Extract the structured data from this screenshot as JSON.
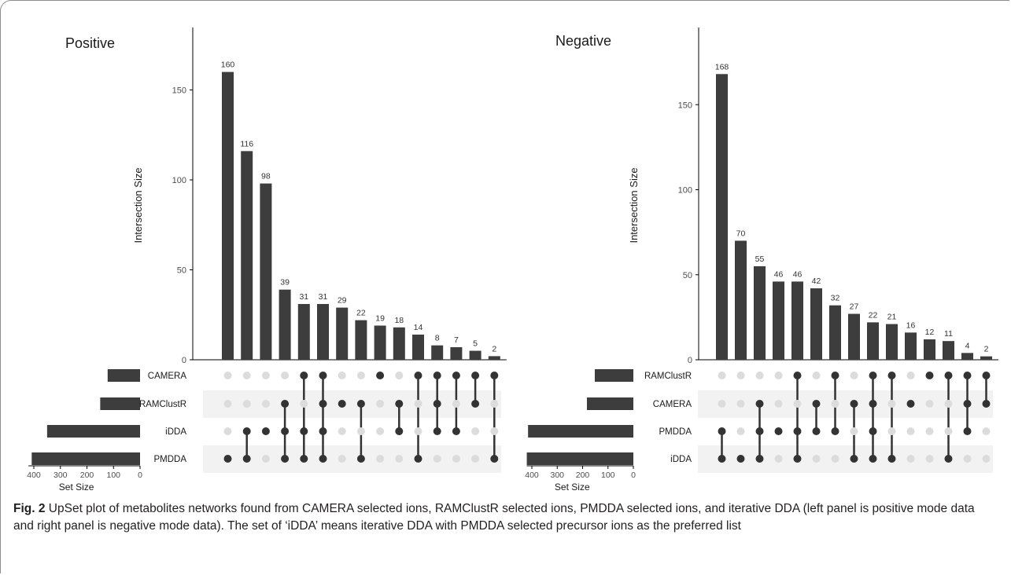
{
  "panels": {
    "left_title": "Positive",
    "right_title": "Negative"
  },
  "caption": {
    "label": "Fig. 2",
    "text": "UpSet plot of metabolites networks found from CAMERA selected ions, RAMClustR selected ions, PMDDA selected ions, and iterative DDA (left panel is positive mode data and right panel is negative mode data). The set of ‘iDDA’ means iterative DDA with PMDDA selected precursor ions as the preferred list"
  },
  "colors": {
    "bar": "#3d3d3d",
    "dot_active": "#333333",
    "dot_inactive": "#dcdcdc",
    "stripe": "#f2f2f2",
    "axis": "#000000"
  },
  "chart_data": [
    {
      "type": "bar",
      "title": "Positive",
      "ylabel": "Intersection Size",
      "xlabel_sets": "Set Size",
      "ylim": [
        0,
        175
      ],
      "yticks": [
        0,
        50,
        100,
        150
      ],
      "set_size_ticks": [
        400,
        300,
        200,
        100,
        0
      ],
      "sets": [
        {
          "name": "CAMERA",
          "size": 122
        },
        {
          "name": "RAMClustR",
          "size": 150
        },
        {
          "name": "iDDA",
          "size": 350
        },
        {
          "name": "PMDDA",
          "size": 408
        }
      ],
      "intersections": [
        {
          "value": 160,
          "members": [
            "PMDDA"
          ]
        },
        {
          "value": 116,
          "members": [
            "iDDA",
            "PMDDA"
          ]
        },
        {
          "value": 98,
          "members": [
            "iDDA"
          ]
        },
        {
          "value": 39,
          "members": [
            "RAMClustR",
            "iDDA",
            "PMDDA"
          ]
        },
        {
          "value": 31,
          "members": [
            "CAMERA",
            "iDDA",
            "PMDDA"
          ]
        },
        {
          "value": 31,
          "members": [
            "CAMERA",
            "RAMClustR",
            "iDDA",
            "PMDDA"
          ]
        },
        {
          "value": 29,
          "members": [
            "RAMClustR"
          ]
        },
        {
          "value": 22,
          "members": [
            "RAMClustR",
            "PMDDA"
          ]
        },
        {
          "value": 19,
          "members": [
            "CAMERA"
          ]
        },
        {
          "value": 18,
          "members": [
            "RAMClustR",
            "iDDA"
          ]
        },
        {
          "value": 14,
          "members": [
            "CAMERA",
            "PMDDA"
          ]
        },
        {
          "value": 8,
          "members": [
            "CAMERA",
            "RAMClustR",
            "iDDA"
          ]
        },
        {
          "value": 7,
          "members": [
            "CAMERA",
            "iDDA"
          ]
        },
        {
          "value": 5,
          "members": [
            "CAMERA",
            "RAMClustR"
          ]
        },
        {
          "value": 2,
          "members": [
            "CAMERA",
            "PMDDA"
          ]
        }
      ]
    },
    {
      "type": "bar",
      "title": "Negative",
      "ylabel": "Intersection Size",
      "xlabel_sets": "Set Size",
      "ylim": [
        0,
        180
      ],
      "yticks": [
        0,
        50,
        100,
        150
      ],
      "set_size_ticks": [
        400,
        300,
        200,
        100,
        0
      ],
      "sets": [
        {
          "name": "RAMClustR",
          "size": 152
        },
        {
          "name": "CAMERA",
          "size": 183
        },
        {
          "name": "PMDDA",
          "size": 415
        },
        {
          "name": "iDDA",
          "size": 420
        }
      ],
      "intersections": [
        {
          "value": 168,
          "members": [
            "PMDDA",
            "iDDA"
          ]
        },
        {
          "value": 70,
          "members": [
            "iDDA"
          ]
        },
        {
          "value": 55,
          "members": [
            "CAMERA",
            "PMDDA",
            "iDDA"
          ]
        },
        {
          "value": 46,
          "members": [
            "PMDDA"
          ]
        },
        {
          "value": 46,
          "members": [
            "RAMClustR",
            "PMDDA",
            "iDDA"
          ]
        },
        {
          "value": 42,
          "members": [
            "CAMERA",
            "PMDDA"
          ]
        },
        {
          "value": 32,
          "members": [
            "RAMClustR",
            "PMDDA"
          ]
        },
        {
          "value": 27,
          "members": [
            "CAMERA",
            "iDDA"
          ]
        },
        {
          "value": 22,
          "members": [
            "RAMClustR",
            "CAMERA",
            "PMDDA",
            "iDDA"
          ]
        },
        {
          "value": 21,
          "members": [
            "RAMClustR",
            "iDDA"
          ]
        },
        {
          "value": 16,
          "members": [
            "CAMERA"
          ]
        },
        {
          "value": 12,
          "members": [
            "RAMClustR"
          ]
        },
        {
          "value": 11,
          "members": [
            "RAMClustR",
            "iDDA"
          ]
        },
        {
          "value": 4,
          "members": [
            "RAMClustR",
            "CAMERA",
            "PMDDA"
          ]
        },
        {
          "value": 2,
          "members": [
            "RAMClustR",
            "CAMERA"
          ]
        }
      ]
    }
  ]
}
